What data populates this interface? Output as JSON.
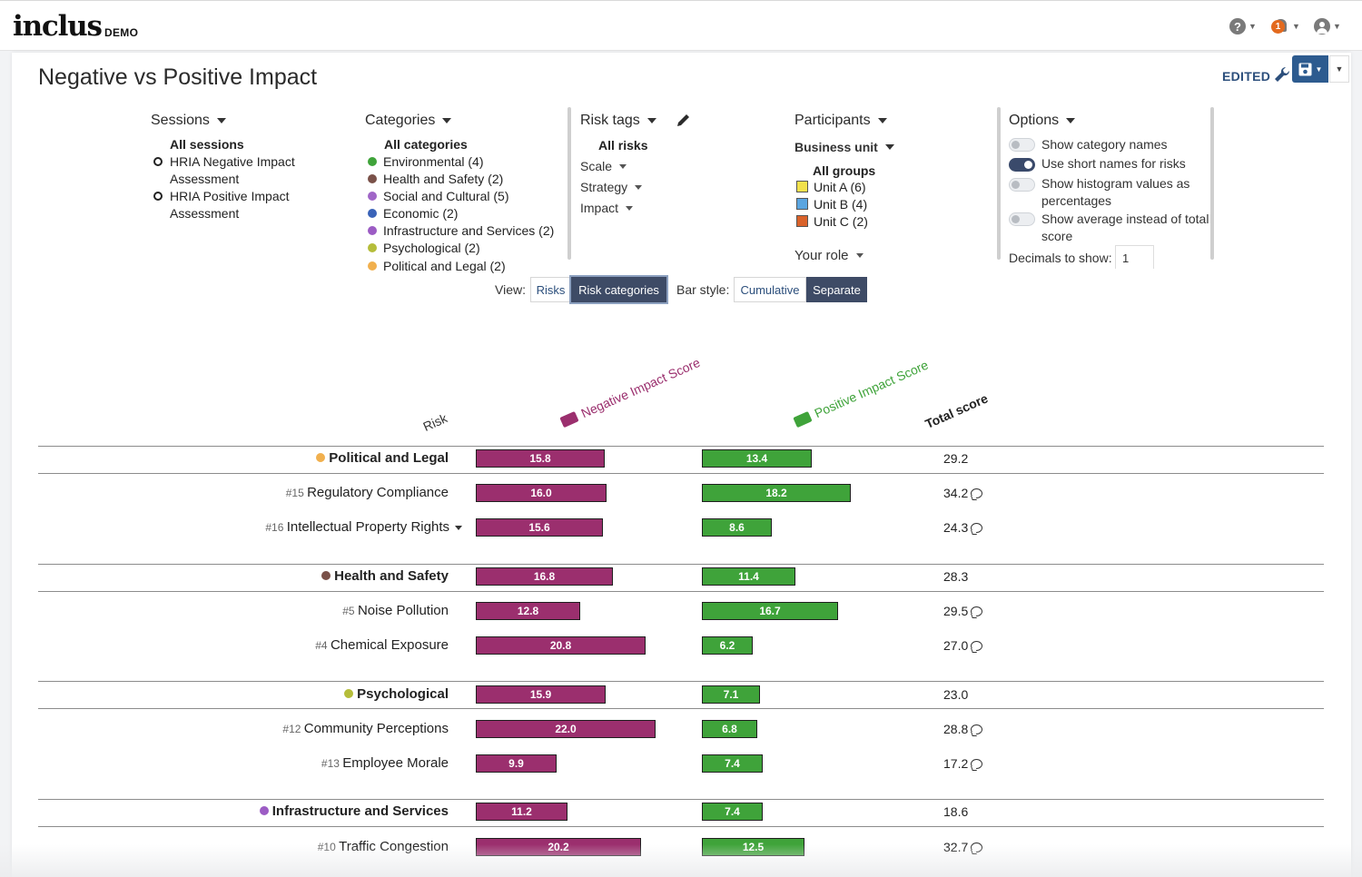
{
  "app": {
    "logo": "inclus",
    "logo_tag": "DEMO",
    "notifications_count": "1"
  },
  "page": {
    "title": "Negative vs Positive Impact",
    "status": "EDITED"
  },
  "filters": {
    "sessions": {
      "heading": "Sessions",
      "all_label": "All sessions",
      "items": [
        "HRIA Negative Impact",
        "Assessment",
        "HRIA Positive Impact",
        "Assessment"
      ]
    },
    "categories": {
      "heading": "Categories",
      "all_label": "All categories",
      "items": [
        {
          "label": "Environmental (4)",
          "color": "#3fa33a"
        },
        {
          "label": "Health and Safety (2)",
          "color": "#7a5149"
        },
        {
          "label": "Social and Cultural (5)",
          "color": "#a066c7"
        },
        {
          "label": "Economic (2)",
          "color": "#3a63b8"
        },
        {
          "label": "Infrastructure and Services (2)",
          "color": "#9c5cc4"
        },
        {
          "label": "Psychological (2)",
          "color": "#b5bd3a"
        },
        {
          "label": "Political and Legal (2)",
          "color": "#f1b04e"
        }
      ]
    },
    "risk_tags": {
      "heading": "Risk tags",
      "all_label": "All risks",
      "items": [
        "Scale",
        "Strategy",
        "Impact"
      ]
    },
    "participants": {
      "heading": "Participants",
      "business_unit": "Business unit",
      "all_label": "All groups",
      "groups": [
        {
          "label": "Unit A (6)",
          "color": "#f2e14c"
        },
        {
          "label": "Unit B (4)",
          "color": "#5aa5e0"
        },
        {
          "label": "Unit C (2)",
          "color": "#d9622a"
        }
      ],
      "your_role": "Your role"
    },
    "options": {
      "heading": "Options",
      "toggles": [
        {
          "label": "Show category names",
          "on": false
        },
        {
          "label": "Use short names for risks",
          "on": true
        },
        {
          "label": "Show histogram values as",
          "label2": "percentages",
          "on": false
        },
        {
          "label": "Show average instead of total",
          "label2": "score",
          "on": false
        }
      ],
      "decimals_label": "Decimals to show:",
      "decimals_value": "1"
    }
  },
  "view": {
    "label": "View:",
    "options": [
      "Risks",
      "Risk categories"
    ],
    "selected": "Risk categories"
  },
  "bar_style": {
    "label": "Bar style:",
    "options": [
      "Cumulative",
      "Separate"
    ],
    "selected": "Separate"
  },
  "table": {
    "col_risk": "Risk",
    "col_negative": "Negative Impact Score",
    "col_positive": "Positive Impact Score",
    "col_total": "Total score",
    "colors": {
      "negative": "#9b2f6e",
      "positive": "#3fa33a"
    },
    "rows": [
      {
        "type": "group",
        "label": "Political and Legal",
        "dot": "#f1b04e",
        "neg": "15.8",
        "pos": "13.4",
        "total": "29.2"
      },
      {
        "type": "risk",
        "num": "#15",
        "label": "Regulatory Compliance",
        "neg": "16.0",
        "pos": "18.2",
        "total": "34.2"
      },
      {
        "type": "risk",
        "num": "#16",
        "label": "Intellectual Property Rights",
        "neg": "15.6",
        "pos": "8.6",
        "total": "24.3"
      },
      {
        "type": "group",
        "label": "Health and Safety",
        "dot": "#7a5149",
        "neg": "16.8",
        "pos": "11.4",
        "total": "28.3"
      },
      {
        "type": "risk",
        "num": "#5",
        "label": "Noise Pollution",
        "neg": "12.8",
        "pos": "16.7",
        "total": "29.5"
      },
      {
        "type": "risk",
        "num": "#4",
        "label": "Chemical Exposure",
        "neg": "20.8",
        "pos": "6.2",
        "total": "27.0"
      },
      {
        "type": "group",
        "label": "Psychological",
        "dot": "#b5bd3a",
        "neg": "15.9",
        "pos": "7.1",
        "total": "23.0"
      },
      {
        "type": "risk",
        "num": "#12",
        "label": "Community Perceptions",
        "neg": "22.0",
        "pos": "6.8",
        "total": "28.8"
      },
      {
        "type": "risk",
        "num": "#13",
        "label": "Employee Morale",
        "neg": "9.9",
        "pos": "7.4",
        "total": "17.2"
      },
      {
        "type": "group",
        "label": "Infrastructure and Services",
        "dot": "#9c5cc4",
        "neg": "11.2",
        "pos": "7.4",
        "total": "18.6"
      },
      {
        "type": "risk",
        "num": "#10",
        "label": "Traffic Congestion",
        "neg": "20.2",
        "pos": "12.5",
        "total": "32.7"
      }
    ]
  }
}
